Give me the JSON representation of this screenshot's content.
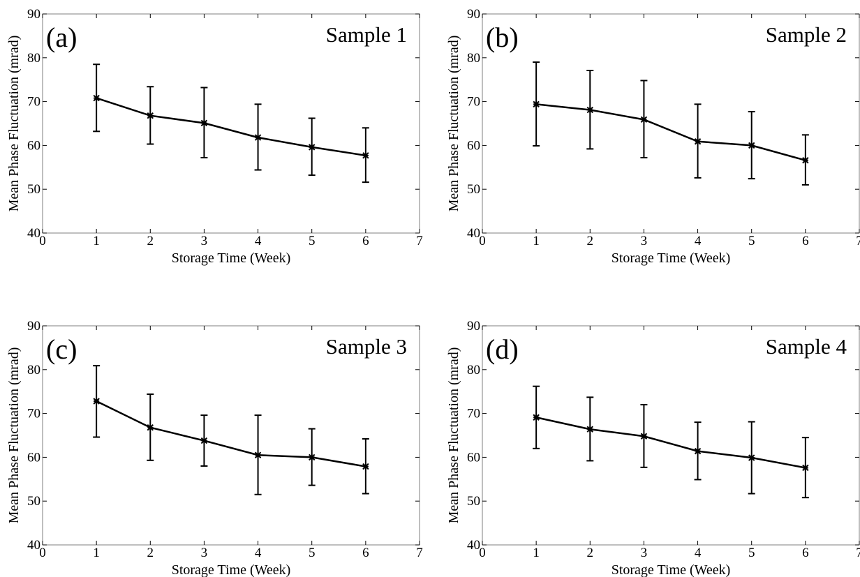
{
  "chart_data": [
    {
      "type": "line",
      "panel_label": "(a)",
      "annotation": "Sample 1",
      "xlabel": "Storage Time (Week)",
      "ylabel": "Mean Phase Fluctuation (mrad)",
      "xlim": [
        0,
        7
      ],
      "ylim": [
        40,
        90
      ],
      "xticks": [
        "0",
        "1",
        "2",
        "3",
        "4",
        "5",
        "6",
        "7"
      ],
      "yticks": [
        "40",
        "50",
        "60",
        "70",
        "80",
        "90"
      ],
      "grid": false,
      "x": [
        1,
        2,
        3,
        4,
        5,
        6
      ],
      "y": [
        70.8,
        66.8,
        65.1,
        61.8,
        59.6,
        57.7
      ],
      "err_low": [
        63.2,
        60.3,
        57.2,
        54.4,
        53.2,
        51.6
      ],
      "err_high": [
        78.5,
        73.4,
        73.2,
        69.4,
        66.2,
        64.0
      ]
    },
    {
      "type": "line",
      "panel_label": "(b)",
      "annotation": "Sample 2",
      "xlabel": "Storage Time (Week)",
      "ylabel": "Mean Phase Fluctuation (mrad)",
      "xlim": [
        0,
        7
      ],
      "ylim": [
        40,
        90
      ],
      "xticks": [
        "0",
        "1",
        "2",
        "3",
        "4",
        "5",
        "6",
        "7"
      ],
      "yticks": [
        "40",
        "50",
        "60",
        "70",
        "80",
        "90"
      ],
      "grid": false,
      "x": [
        1,
        2,
        3,
        4,
        5,
        6
      ],
      "y": [
        69.4,
        68.1,
        65.9,
        60.9,
        60.0,
        56.6
      ],
      "err_low": [
        59.9,
        59.2,
        57.2,
        52.6,
        52.4,
        51.0
      ],
      "err_high": [
        79.0,
        77.1,
        74.8,
        69.4,
        67.7,
        62.4
      ]
    },
    {
      "type": "line",
      "panel_label": "(c)",
      "annotation": "Sample 3",
      "xlabel": "Storage Time (Week)",
      "ylabel": "Mean Phase Fluctuation (mrad)",
      "xlim": [
        0,
        7
      ],
      "ylim": [
        40,
        90
      ],
      "xticks": [
        "0",
        "1",
        "2",
        "3",
        "4",
        "5",
        "6",
        "7"
      ],
      "yticks": [
        "40",
        "50",
        "60",
        "70",
        "80",
        "90"
      ],
      "grid": false,
      "x": [
        1,
        2,
        3,
        4,
        5,
        6
      ],
      "y": [
        72.8,
        66.8,
        63.8,
        60.5,
        60.0,
        57.9
      ],
      "err_low": [
        64.6,
        59.3,
        58.0,
        51.5,
        53.6,
        51.7
      ],
      "err_high": [
        80.9,
        74.4,
        69.6,
        69.6,
        66.5,
        64.2
      ]
    },
    {
      "type": "line",
      "panel_label": "(d)",
      "annotation": "Sample 4",
      "xlabel": "Storage Time (Week)",
      "ylabel": "Mean Phase Fluctuation (mrad)",
      "xlim": [
        0,
        7
      ],
      "ylim": [
        40,
        90
      ],
      "xticks": [
        "0",
        "1",
        "2",
        "3",
        "4",
        "5",
        "6",
        "7"
      ],
      "yticks": [
        "40",
        "50",
        "60",
        "70",
        "80",
        "90"
      ],
      "grid": false,
      "x": [
        1,
        2,
        3,
        4,
        5,
        6
      ],
      "y": [
        69.1,
        66.4,
        64.8,
        61.4,
        59.9,
        57.6
      ],
      "err_low": [
        62.0,
        59.2,
        57.7,
        54.9,
        51.7,
        50.8
      ],
      "err_high": [
        76.2,
        73.7,
        72.0,
        68.0,
        68.1,
        64.5
      ]
    }
  ],
  "colors": {
    "line": "#000000",
    "axes": "#000000",
    "background": "#ffffff"
  }
}
